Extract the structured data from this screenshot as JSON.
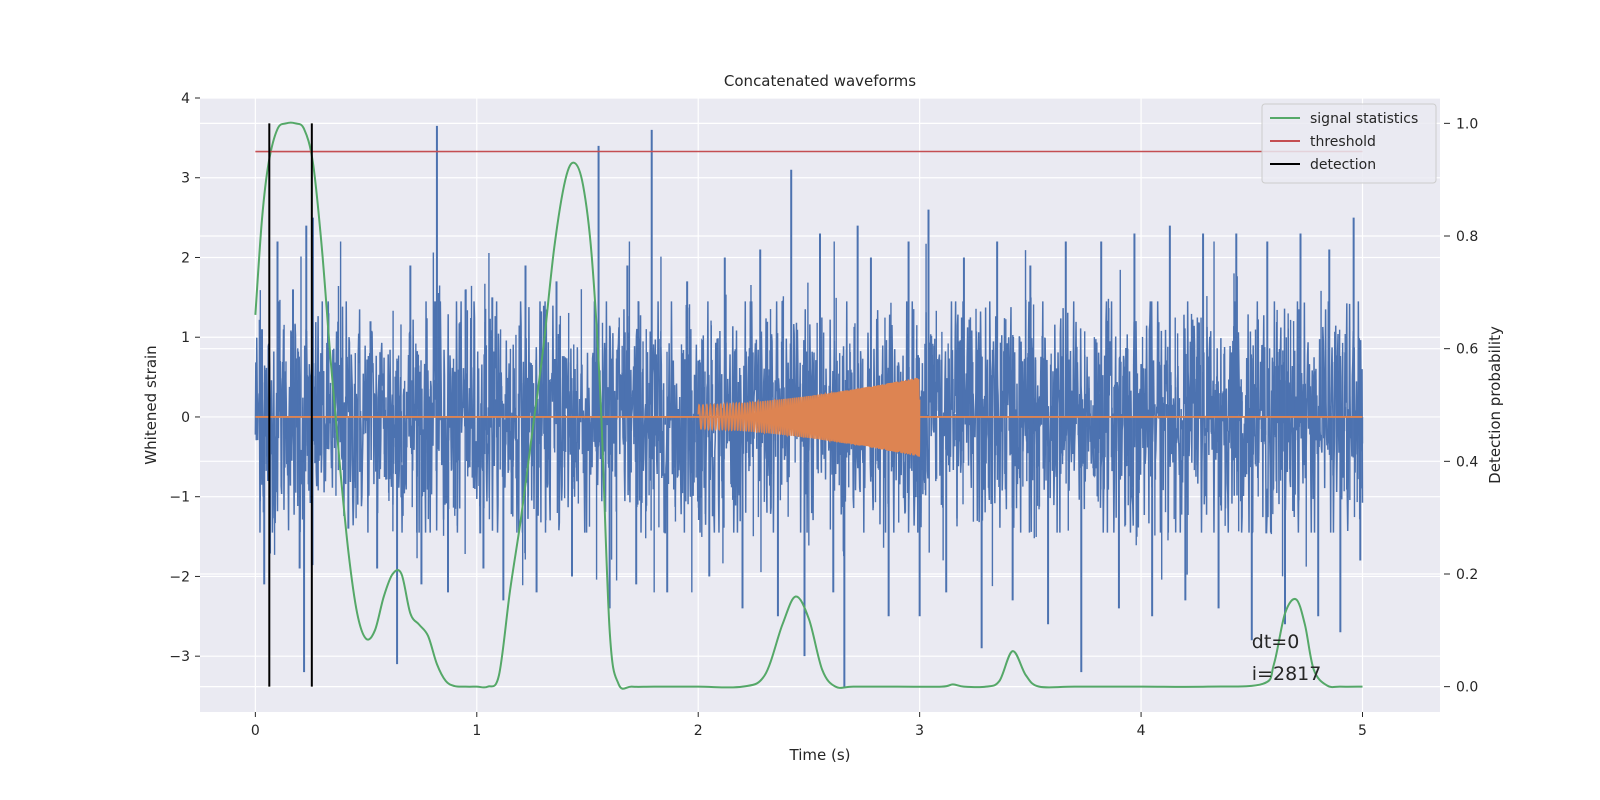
{
  "chart_data": {
    "type": "line",
    "title": "Concatenated waveforms",
    "xlabel": "Time (s)",
    "ylabel": "Whitened strain",
    "y2label": "Detection probability",
    "xlim": [
      -0.25,
      5.35
    ],
    "ylim": [
      -3.7,
      4.0
    ],
    "y2lim": [
      -0.045,
      1.045
    ],
    "x_ticks": [
      0,
      1,
      2,
      3,
      4,
      5
    ],
    "x_tick_labels": [
      "0",
      "1",
      "2",
      "3",
      "4",
      "5"
    ],
    "y_ticks": [
      -3,
      -2,
      -1,
      0,
      1,
      2,
      3,
      4
    ],
    "y_tick_labels": [
      "−3",
      "−2",
      "−1",
      "0",
      "1",
      "2",
      "3",
      "4"
    ],
    "y2_ticks": [
      0.0,
      0.2,
      0.4,
      0.6,
      0.8,
      1.0
    ],
    "y2_tick_labels": [
      "0.0",
      "0.2",
      "0.4",
      "0.6",
      "0.8",
      "1.0"
    ],
    "grid": true,
    "legend_position": "top-right",
    "series": [
      {
        "name": "",
        "axis": "left",
        "style": "noise",
        "x_range": [
          0,
          5
        ],
        "amplitude_envelope": 1.3,
        "spikes": [
          {
            "x": 0.03,
            "y": 1.1
          },
          {
            "x": 0.04,
            "y": -2.1
          },
          {
            "x": 0.1,
            "y": 2.2
          },
          {
            "x": 0.17,
            "y": 1.6
          },
          {
            "x": 0.2,
            "y": -1.9
          },
          {
            "x": 0.23,
            "y": 2.4
          },
          {
            "x": 0.22,
            "y": -3.2
          },
          {
            "x": 0.26,
            "y": 2.5
          },
          {
            "x": 0.33,
            "y": 1.3
          },
          {
            "x": 0.42,
            "y": -1.4
          },
          {
            "x": 0.52,
            "y": 1.2
          },
          {
            "x": 0.55,
            "y": -1.9
          },
          {
            "x": 0.64,
            "y": -3.1
          },
          {
            "x": 0.7,
            "y": 1.9
          },
          {
            "x": 0.75,
            "y": -2.1
          },
          {
            "x": 0.82,
            "y": 3.65
          },
          {
            "x": 0.87,
            "y": -2.2
          },
          {
            "x": 0.95,
            "y": 1.6
          },
          {
            "x": 1.03,
            "y": -1.9
          },
          {
            "x": 1.07,
            "y": 1.5
          },
          {
            "x": 1.12,
            "y": -2.3
          },
          {
            "x": 1.22,
            "y": 1.9
          },
          {
            "x": 1.27,
            "y": -2.2
          },
          {
            "x": 1.36,
            "y": 1.7
          },
          {
            "x": 1.43,
            "y": -2.0
          },
          {
            "x": 1.55,
            "y": 3.4
          },
          {
            "x": 1.6,
            "y": -2.4
          },
          {
            "x": 1.68,
            "y": 1.9
          },
          {
            "x": 1.72,
            "y": -2.1
          },
          {
            "x": 1.79,
            "y": 3.6
          },
          {
            "x": 1.86,
            "y": -2.2
          },
          {
            "x": 1.95,
            "y": 1.7
          },
          {
            "x": 2.05,
            "y": -2.0
          },
          {
            "x": 2.12,
            "y": 2.0
          },
          {
            "x": 2.2,
            "y": -2.4
          },
          {
            "x": 2.28,
            "y": 2.1
          },
          {
            "x": 2.36,
            "y": -2.5
          },
          {
            "x": 2.42,
            "y": 3.1
          },
          {
            "x": 2.48,
            "y": -3.0
          },
          {
            "x": 2.55,
            "y": 2.3
          },
          {
            "x": 2.61,
            "y": -2.2
          },
          {
            "x": 2.66,
            "y": -3.4
          },
          {
            "x": 2.72,
            "y": 2.4
          },
          {
            "x": 2.78,
            "y": 2.0
          },
          {
            "x": 2.86,
            "y": -2.5
          },
          {
            "x": 2.95,
            "y": 2.2
          },
          {
            "x": 3.0,
            "y": -2.5
          },
          {
            "x": 3.04,
            "y": 2.6
          },
          {
            "x": 3.12,
            "y": -2.2
          },
          {
            "x": 3.2,
            "y": 2.0
          },
          {
            "x": 3.28,
            "y": -2.9
          },
          {
            "x": 3.35,
            "y": 2.2
          },
          {
            "x": 3.42,
            "y": -2.3
          },
          {
            "x": 3.5,
            "y": 1.9
          },
          {
            "x": 3.58,
            "y": -2.6
          },
          {
            "x": 3.66,
            "y": 2.2
          },
          {
            "x": 3.73,
            "y": -3.2
          },
          {
            "x": 3.82,
            "y": 2.2
          },
          {
            "x": 3.9,
            "y": -2.4
          },
          {
            "x": 3.97,
            "y": 2.3
          },
          {
            "x": 4.05,
            "y": -2.5
          },
          {
            "x": 4.13,
            "y": 2.4
          },
          {
            "x": 4.2,
            "y": -2.3
          },
          {
            "x": 4.28,
            "y": 2.3
          },
          {
            "x": 4.35,
            "y": -2.4
          },
          {
            "x": 4.43,
            "y": 2.3
          },
          {
            "x": 4.5,
            "y": -2.8
          },
          {
            "x": 4.57,
            "y": 2.2
          },
          {
            "x": 4.65,
            "y": -2.6
          },
          {
            "x": 4.72,
            "y": 2.3
          },
          {
            "x": 4.8,
            "y": -2.5
          },
          {
            "x": 4.85,
            "y": 2.1
          },
          {
            "x": 4.9,
            "y": -2.7
          },
          {
            "x": 4.96,
            "y": 2.5
          },
          {
            "x": 4.99,
            "y": -1.8
          }
        ],
        "color": "#4c72b0"
      },
      {
        "name": "",
        "axis": "left",
        "style": "chirp",
        "baseline": 0,
        "chirp_start_x": 2.0,
        "chirp_end_x": 3.0,
        "chirp_amp_start": 0.15,
        "chirp_amp_end": 0.5,
        "color": "#dd8452"
      },
      {
        "name": "signal statistics",
        "axis": "right",
        "x": [
          0.0,
          0.03,
          0.06,
          0.1,
          0.14,
          0.18,
          0.22,
          0.26,
          0.3,
          0.34,
          0.38,
          0.42,
          0.46,
          0.5,
          0.54,
          0.58,
          0.62,
          0.66,
          0.7,
          0.74,
          0.78,
          0.82,
          0.86,
          0.9,
          0.95,
          1.0,
          1.05,
          1.1,
          1.15,
          1.2,
          1.25,
          1.3,
          1.35,
          1.4,
          1.44,
          1.48,
          1.52,
          1.56,
          1.6,
          1.64,
          1.7,
          1.8,
          2.0,
          2.2,
          2.3,
          2.38,
          2.44,
          2.5,
          2.56,
          2.62,
          2.7,
          2.9,
          3.1,
          3.15,
          3.2,
          3.3,
          3.36,
          3.42,
          3.48,
          3.54,
          3.7,
          4.0,
          4.3,
          4.55,
          4.6,
          4.65,
          4.7,
          4.74,
          4.78,
          4.84,
          4.9,
          5.0
        ],
        "values": [
          0.66,
          0.83,
          0.93,
          0.99,
          1.0,
          1.0,
          0.99,
          0.93,
          0.78,
          0.58,
          0.4,
          0.24,
          0.13,
          0.085,
          0.1,
          0.16,
          0.2,
          0.2,
          0.13,
          0.11,
          0.09,
          0.04,
          0.01,
          0.001,
          0.0,
          0.0,
          0.0,
          0.02,
          0.17,
          0.3,
          0.45,
          0.6,
          0.78,
          0.9,
          0.93,
          0.89,
          0.76,
          0.5,
          0.1,
          0.005,
          0.0,
          0.0,
          0.0,
          0.0,
          0.02,
          0.11,
          0.16,
          0.12,
          0.03,
          0.0,
          0.0,
          0.0,
          0.0,
          0.004,
          0.0,
          0.0,
          0.01,
          0.063,
          0.02,
          0.0,
          0.0,
          0.0,
          0.0,
          0.005,
          0.04,
          0.13,
          0.155,
          0.11,
          0.03,
          0.002,
          0.0,
          0.0
        ],
        "color": "#55a868"
      },
      {
        "name": "threshold",
        "axis": "right",
        "x": [
          0,
          5
        ],
        "values": [
          0.95,
          0.95
        ],
        "color": "#c44e52"
      },
      {
        "name": "detection",
        "axis": "right",
        "style": "vlines",
        "x": [
          0.063,
          0.255
        ],
        "y_range": [
          0.0,
          1.0
        ],
        "color": "#000000"
      }
    ],
    "annotations": [
      {
        "text": "dt=0",
        "x": 4.5,
        "y": -2.9
      },
      {
        "text": "i=2817",
        "x": 4.5,
        "y": -3.3
      }
    ],
    "colors": {
      "plot_background": "#eaeaf2",
      "grid": "#ffffff",
      "figure_background": "#ffffff"
    }
  }
}
